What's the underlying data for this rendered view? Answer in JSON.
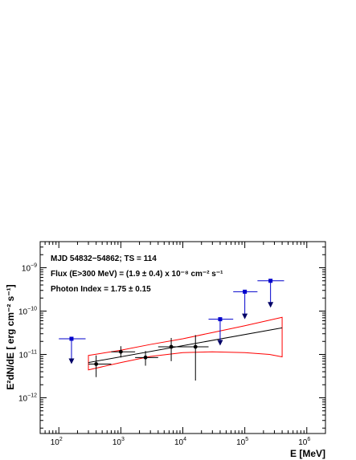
{
  "chart_data": {
    "type": "scatter",
    "title": "",
    "xlabel": "E [MeV]",
    "ylabel": "E²dN/dE [ erg cm⁻² s⁻¹]",
    "x_scale": "log",
    "y_scale": "log",
    "xlim": [
      50,
      2000000
    ],
    "ylim": [
      1.5e-13,
      4e-09
    ],
    "grid": false,
    "x_tick_labels": [
      {
        "value": 100,
        "base": "10",
        "exp": "2"
      },
      {
        "value": 1000,
        "base": "10",
        "exp": "3"
      },
      {
        "value": 10000,
        "base": "10",
        "exp": "4"
      },
      {
        "value": 100000,
        "base": "10",
        "exp": "5"
      },
      {
        "value": 1000000,
        "base": "10",
        "exp": "6"
      }
    ],
    "y_tick_labels": [
      {
        "value": 1e-12,
        "base": "10",
        "exp": "−12"
      },
      {
        "value": 1e-11,
        "base": "10",
        "exp": "−11"
      },
      {
        "value": 1e-10,
        "base": "10",
        "exp": "−10"
      },
      {
        "value": 1e-09,
        "base": "10",
        "exp": "−9"
      }
    ],
    "annotations": [
      "MJD 54832−54862;  TS = 114",
      "Flux (E>300 MeV) = (1.9 ± 0.4) x 10⁻⁸ cm⁻² s⁻¹",
      "Photon Index = 1.75 ± 0.15"
    ],
    "series": [
      {
        "kind": "detections",
        "color": "#000000",
        "points": [
          {
            "x": 400,
            "xlo": 300,
            "xhi": 700,
            "y": 6e-12,
            "ylo": 3e-12,
            "yhi": 9.5e-12
          },
          {
            "x": 1000,
            "xlo": 700,
            "xhi": 1700,
            "y": 1.15e-11,
            "ylo": 8.5e-12,
            "yhi": 1.55e-11
          },
          {
            "x": 2500,
            "xlo": 1700,
            "xhi": 4000,
            "y": 8.5e-12,
            "ylo": 5.5e-12,
            "yhi": 1.2e-11
          },
          {
            "x": 6500,
            "xlo": 4000,
            "xhi": 10000,
            "y": 1.5e-11,
            "ylo": 7e-12,
            "yhi": 2.4e-11
          },
          {
            "x": 16000,
            "xlo": 10000,
            "xhi": 26000,
            "y": 1.5e-11,
            "ylo": 2.5e-12,
            "yhi": 2.8e-11
          }
        ]
      },
      {
        "kind": "upper_limits",
        "color": "#0000cc",
        "points": [
          {
            "x": 160,
            "xlo": 100,
            "xhi": 270,
            "y": 2.3e-11,
            "arrow_to": 6e-12
          },
          {
            "x": 40000,
            "xlo": 26000,
            "xhi": 65000,
            "y": 6.5e-11,
            "arrow_to": 1.6e-11
          },
          {
            "x": 100000,
            "xlo": 65000,
            "xhi": 160000,
            "y": 2.8e-10,
            "arrow_to": 6.5e-11
          },
          {
            "x": 260000,
            "xlo": 160000,
            "xhi": 430000,
            "y": 5e-10,
            "arrow_to": 1.2e-10
          }
        ]
      }
    ],
    "model": {
      "color": "#000000",
      "line": [
        {
          "x": 300,
          "y": 6.5e-12
        },
        {
          "x": 400000,
          "y": 4.1e-11
        }
      ]
    },
    "confidence_band": {
      "color": "#ff0000",
      "upper": [
        {
          "x": 300,
          "y": 9.5e-12
        },
        {
          "x": 1000,
          "y": 1.25e-11
        },
        {
          "x": 3000,
          "y": 1.7e-11
        },
        {
          "x": 10000,
          "y": 2.3e-11
        },
        {
          "x": 30000,
          "y": 3.2e-11
        },
        {
          "x": 100000,
          "y": 4.6e-11
        },
        {
          "x": 400000,
          "y": 7.2e-11
        }
      ],
      "lower": [
        {
          "x": 300,
          "y": 4.4e-12
        },
        {
          "x": 1000,
          "y": 6.5e-12
        },
        {
          "x": 3000,
          "y": 9e-12
        },
        {
          "x": 10000,
          "y": 1.1e-11
        },
        {
          "x": 30000,
          "y": 1.15e-11
        },
        {
          "x": 100000,
          "y": 1.1e-11
        },
        {
          "x": 250000,
          "y": 1e-11
        },
        {
          "x": 400000,
          "y": 8.8e-12
        }
      ]
    }
  }
}
